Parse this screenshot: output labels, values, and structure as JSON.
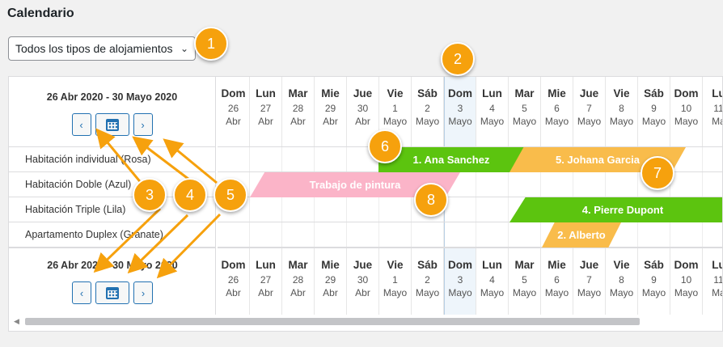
{
  "page": {
    "title": "Calendario"
  },
  "filter": {
    "selected": "Todos los tipos de alojamientos"
  },
  "calendar": {
    "range": "26 Abr 2020 - 30 Mayo 2020",
    "nav": {
      "prev": "‹",
      "next": "›"
    },
    "days": [
      {
        "name": "Dom",
        "num": "26",
        "month": "Abr"
      },
      {
        "name": "Lun",
        "num": "27",
        "month": "Abr"
      },
      {
        "name": "Mar",
        "num": "28",
        "month": "Abr"
      },
      {
        "name": "Mie",
        "num": "29",
        "month": "Abr"
      },
      {
        "name": "Jue",
        "num": "30",
        "month": "Abr"
      },
      {
        "name": "Vie",
        "num": "1",
        "month": "Mayo"
      },
      {
        "name": "Sáb",
        "num": "2",
        "month": "Mayo"
      },
      {
        "name": "Dom",
        "num": "3",
        "month": "Mayo",
        "today": true
      },
      {
        "name": "Lun",
        "num": "4",
        "month": "Mayo"
      },
      {
        "name": "Mar",
        "num": "5",
        "month": "Mayo"
      },
      {
        "name": "Mie",
        "num": "6",
        "month": "Mayo"
      },
      {
        "name": "Jue",
        "num": "7",
        "month": "Mayo"
      },
      {
        "name": "Vie",
        "num": "8",
        "month": "Mayo"
      },
      {
        "name": "Sáb",
        "num": "9",
        "month": "Mayo"
      },
      {
        "name": "Dom",
        "num": "10",
        "month": "Mayo"
      },
      {
        "name": "Lu",
        "num": "11",
        "month": "Ma"
      }
    ],
    "rooms": [
      "Habitación individual (Rosa)",
      "Habitación Doble (Azul)",
      "Habitación Triple (Lila)",
      "Apartamento Duplex (Granate)"
    ],
    "bookings": [
      {
        "label": "1. Ana Sanchez",
        "color": "#5cc40f"
      },
      {
        "label": "5. Johana Garcia",
        "color": "#f9bc4b"
      },
      {
        "label": "Trabajo de pintura",
        "color": "#fbb4c8"
      },
      {
        "label": "4. Pierre Dupont",
        "color": "#5cc40f"
      },
      {
        "label": "2. Alberto",
        "color": "#f9bc4b"
      }
    ]
  },
  "badges": [
    "1",
    "2",
    "3",
    "4",
    "5",
    "6",
    "7",
    "8"
  ],
  "colors": {
    "badge": "#f6a10d",
    "arrow": "#f6a10d",
    "today": "#eef5fb",
    "button": "#2271b1"
  }
}
